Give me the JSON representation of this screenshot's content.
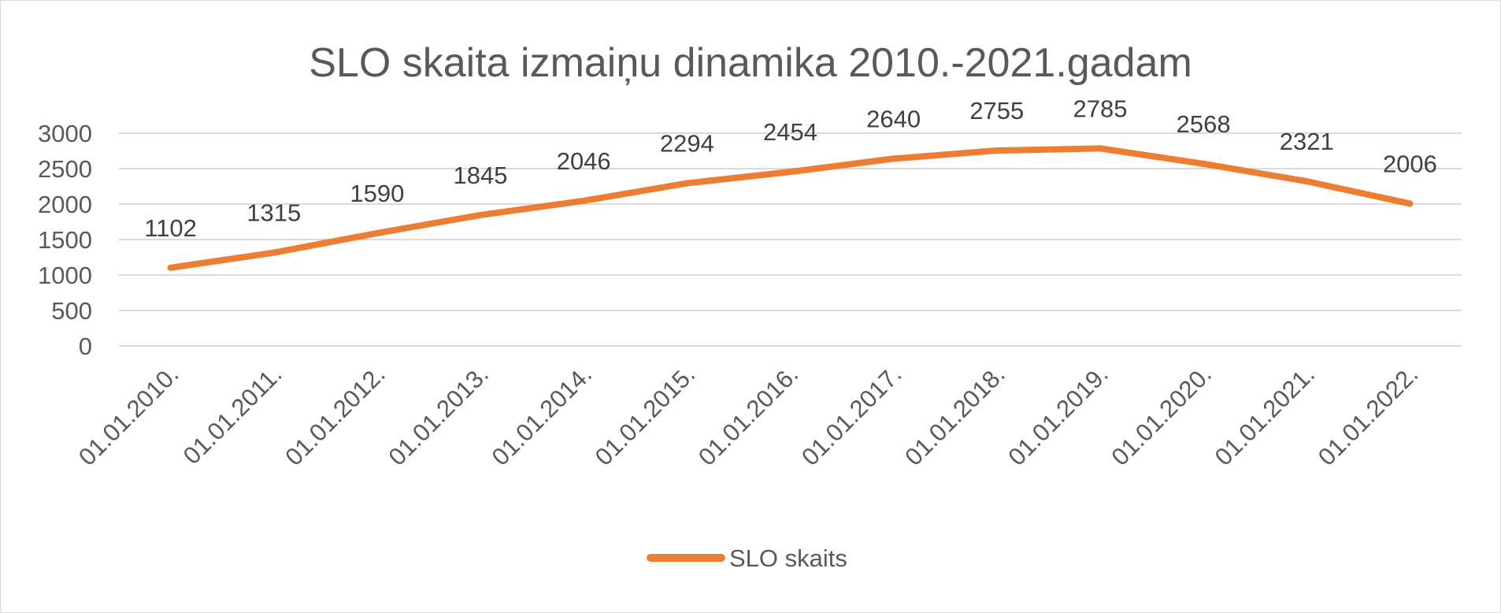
{
  "chart_data": {
    "type": "line",
    "title": "SLO skaita izmaiņu dinamika 2010.-2021.gadam",
    "categories": [
      "01.01.2010.",
      "01.01.2011.",
      "01.01.2012.",
      "01.01.2013.",
      "01.01.2014.",
      "01.01.2015.",
      "01.01.2016.",
      "01.01.2017.",
      "01.01.2018.",
      "01.01.2019.",
      "01.01.2020.",
      "01.01.2021.",
      "01.01.2022."
    ],
    "series": [
      {
        "name": "SLO skaits",
        "values": [
          1102,
          1315,
          1590,
          1845,
          2046,
          2294,
          2454,
          2640,
          2755,
          2785,
          2568,
          2321,
          2006
        ],
        "color": "#ED7D31"
      }
    ],
    "y_ticks": [
      "0",
      "500",
      "1000",
      "1500",
      "2000",
      "2500",
      "3000"
    ],
    "ylim": [
      0,
      3000
    ],
    "grid": true,
    "legend_position": "bottom"
  }
}
